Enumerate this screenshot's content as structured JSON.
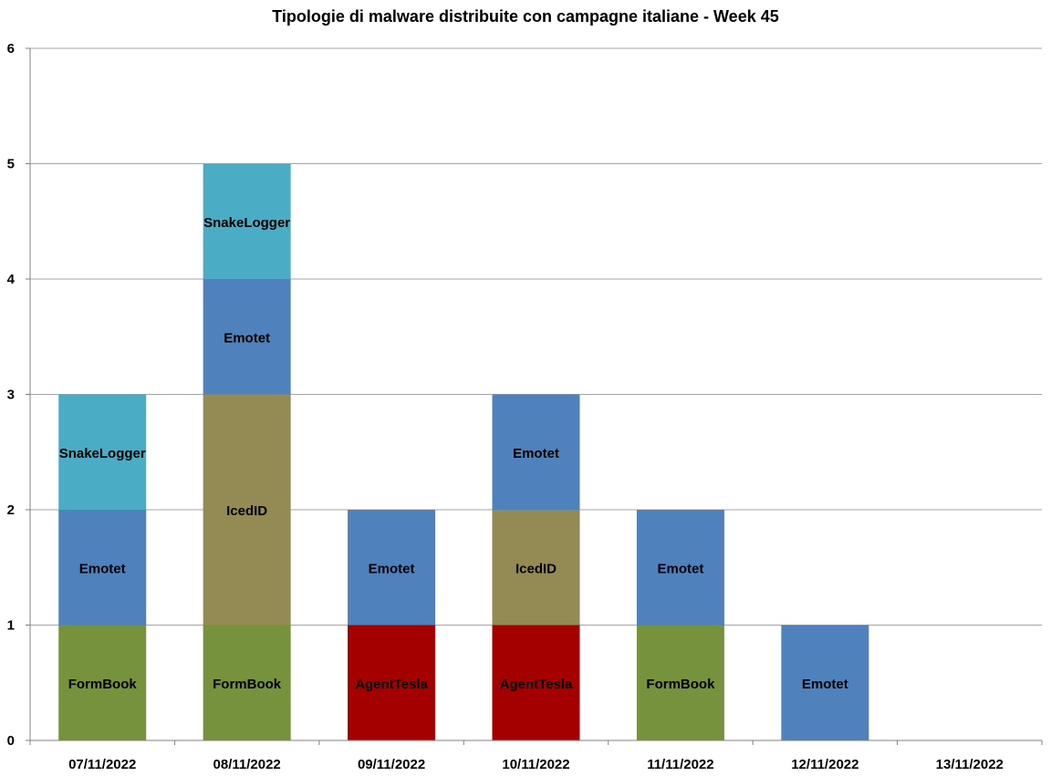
{
  "chart_data": {
    "type": "bar",
    "stacked": true,
    "title": "Tipologie di malware distribuite con campagne italiane - Week 45",
    "xlabel": "",
    "ylabel": "",
    "ylim": [
      0,
      6
    ],
    "yticks": [
      "0",
      "1",
      "2",
      "3",
      "4",
      "5",
      "6"
    ],
    "grid": true,
    "legend": "none",
    "categories": [
      "07/11/2022",
      "08/11/2022",
      "09/11/2022",
      "10/11/2022",
      "11/11/2022",
      "12/11/2022",
      "13/11/2022"
    ],
    "colors": {
      "FormBook": "#76923C",
      "AgentTesla": "#A50000",
      "IcedID": "#948A54",
      "Emotet": "#4F81BD",
      "SnakeLogger": "#4BACC6"
    },
    "stacks": [
      [
        {
          "label": "FormBook",
          "value": 1
        },
        {
          "label": "Emotet",
          "value": 1
        },
        {
          "label": "SnakeLogger",
          "value": 1
        }
      ],
      [
        {
          "label": "FormBook",
          "value": 1
        },
        {
          "label": "IcedID",
          "value": 2
        },
        {
          "label": "Emotet",
          "value": 1
        },
        {
          "label": "SnakeLogger",
          "value": 1
        }
      ],
      [
        {
          "label": "AgentTesla",
          "value": 1
        },
        {
          "label": "Emotet",
          "value": 1
        }
      ],
      [
        {
          "label": "AgentTesla",
          "value": 1
        },
        {
          "label": "IcedID",
          "value": 1
        },
        {
          "label": "Emotet",
          "value": 1
        }
      ],
      [
        {
          "label": "FormBook",
          "value": 1
        },
        {
          "label": "Emotet",
          "value": 1
        }
      ],
      [
        {
          "label": "Emotet",
          "value": 1
        }
      ],
      []
    ]
  }
}
